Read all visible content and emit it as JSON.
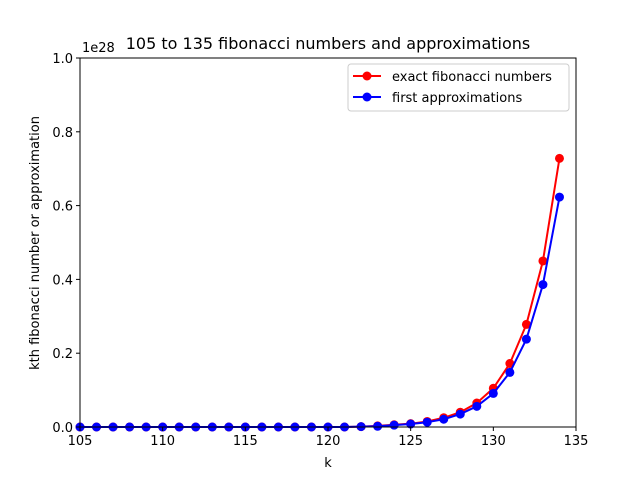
{
  "chart_data": {
    "type": "line",
    "title": "105 to 135 fibonacci numbers and approximations",
    "xlabel": "k",
    "ylabel": "kth fibonacci number or approximation",
    "y_offset_label": "1e28",
    "xlim": [
      105,
      135
    ],
    "ylim": [
      0,
      1.0
    ],
    "y_scale_exponent": 28,
    "x_ticks": [
      "105",
      "110",
      "115",
      "120",
      "125",
      "130",
      "135"
    ],
    "y_ticks": [
      "0.0",
      "0.2",
      "0.4",
      "0.6",
      "0.8",
      "1.0"
    ],
    "grid": false,
    "legend_position": "top-right",
    "x": [
      105,
      106,
      107,
      108,
      109,
      110,
      111,
      112,
      113,
      114,
      115,
      116,
      117,
      118,
      119,
      120,
      121,
      122,
      123,
      124,
      125,
      126,
      127,
      128,
      129,
      130,
      131,
      132,
      133,
      134
    ],
    "series": [
      {
        "name": "exact fibonacci numbers",
        "color": "#ff0000",
        "values": [
          0.0,
          0.0,
          0.0,
          0.0,
          0.0,
          0.0,
          0.0,
          0.0,
          0.0,
          0.0,
          0.0,
          0.0,
          0.0,
          0.0,
          0.0,
          0.0,
          0.0,
          0.001,
          0.003,
          0.006,
          0.009,
          0.015,
          0.025,
          0.04,
          0.065,
          0.105,
          0.172,
          0.278,
          0.45,
          0.728
        ]
      },
      {
        "name": "first approximations",
        "color": "#0000ff",
        "values": [
          0.0,
          0.0,
          0.0,
          0.0,
          0.0,
          0.0,
          0.0,
          0.0,
          0.0,
          0.0,
          0.0,
          0.0,
          0.0,
          0.0,
          0.0,
          0.0,
          0.0,
          0.001,
          0.002,
          0.005,
          0.008,
          0.013,
          0.021,
          0.035,
          0.056,
          0.091,
          0.148,
          0.238,
          0.386,
          0.623
        ]
      }
    ]
  }
}
